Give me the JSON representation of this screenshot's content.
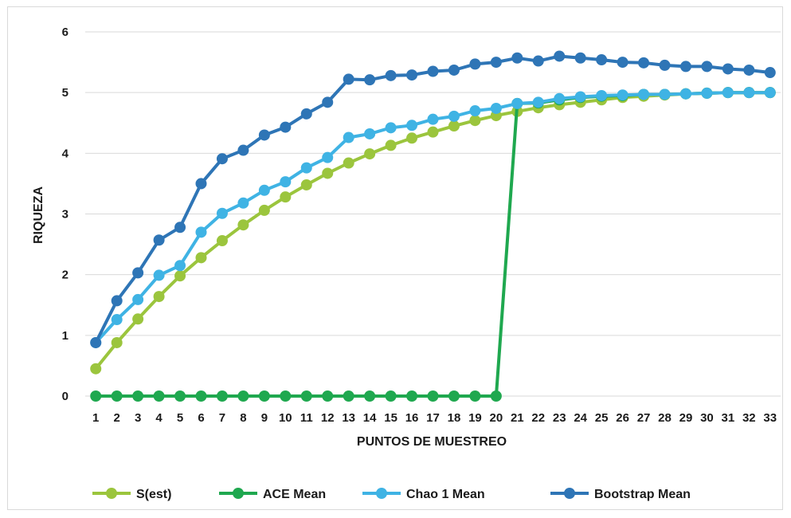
{
  "chart_data": {
    "type": "line",
    "title": "",
    "xlabel": "PUNTOS DE MUESTREO",
    "ylabel": "RIQUEZA",
    "ylim": [
      0,
      6
    ],
    "yticks": [
      "0",
      "1",
      "2",
      "3",
      "4",
      "5",
      "6"
    ],
    "grid": true,
    "legend_position": "bottom",
    "categories": [
      "1",
      "2",
      "3",
      "4",
      "5",
      "6",
      "7",
      "8",
      "9",
      "10",
      "11",
      "12",
      "13",
      "14",
      "15",
      "16",
      "17",
      "18",
      "19",
      "20",
      "21",
      "22",
      "23",
      "24",
      "25",
      "26",
      "27",
      "28",
      "29",
      "30",
      "31",
      "32",
      "33"
    ],
    "series": [
      {
        "name": "S(est)",
        "color": "#9bc53d",
        "values": [
          0.45,
          0.88,
          1.27,
          1.64,
          1.98,
          2.28,
          2.56,
          2.82,
          3.06,
          3.28,
          3.48,
          3.67,
          3.84,
          3.99,
          4.13,
          4.25,
          4.35,
          4.45,
          4.54,
          4.62,
          4.69,
          4.75,
          4.8,
          4.84,
          4.88,
          4.92,
          4.94,
          4.96,
          4.98,
          4.99,
          5.0,
          5.0,
          5.0
        ]
      },
      {
        "name": "ACE Mean",
        "color": "#1fa84f",
        "values": [
          0,
          0,
          0,
          0,
          0,
          0,
          0,
          0,
          0,
          0,
          0,
          0,
          0,
          0,
          0,
          0,
          0,
          0,
          0,
          0,
          4.82,
          4.83,
          4.88,
          4.92,
          4.94,
          4.95,
          4.97,
          4.97,
          4.98,
          4.99,
          5.0,
          5.0,
          5.0
        ]
      },
      {
        "name": "Chao 1 Mean",
        "color": "#3fb3e4",
        "values": [
          0.88,
          1.26,
          1.59,
          1.99,
          2.15,
          2.7,
          3.01,
          3.18,
          3.39,
          3.53,
          3.76,
          3.93,
          4.26,
          4.32,
          4.42,
          4.46,
          4.56,
          4.61,
          4.7,
          4.74,
          4.82,
          4.84,
          4.9,
          4.93,
          4.95,
          4.96,
          4.97,
          4.97,
          4.98,
          4.99,
          5.0,
          5.0,
          5.0
        ]
      },
      {
        "name": "Bootstrap Mean",
        "color": "#2e75b6",
        "values": [
          0.88,
          1.57,
          2.03,
          2.57,
          2.78,
          3.5,
          3.91,
          4.05,
          4.3,
          4.43,
          4.65,
          4.84,
          5.22,
          5.21,
          5.28,
          5.29,
          5.35,
          5.37,
          5.47,
          5.5,
          5.57,
          5.52,
          5.6,
          5.57,
          5.54,
          5.5,
          5.49,
          5.45,
          5.43,
          5.43,
          5.39,
          5.37,
          5.33
        ]
      }
    ]
  }
}
